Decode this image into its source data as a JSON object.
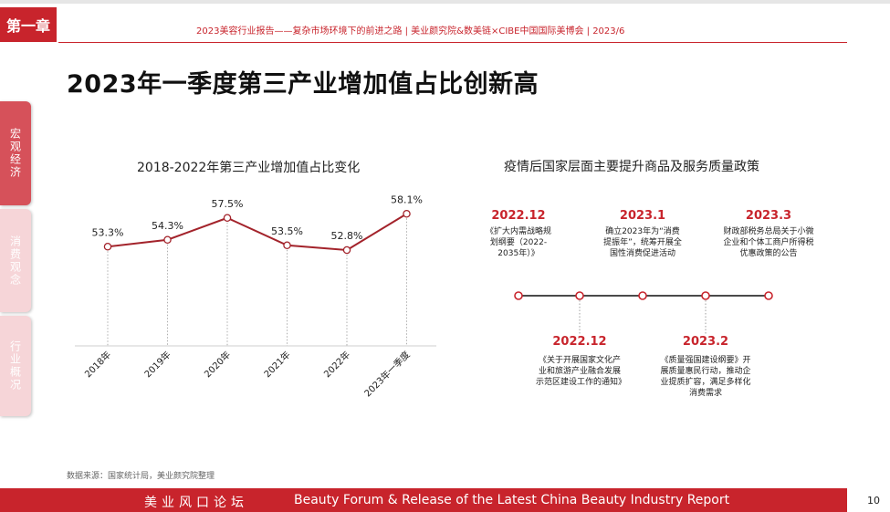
{
  "header": {
    "chapter": "第一章",
    "line": "2023美容行业报告——复杂市场环境下的前进之路  |  美业颜究院&数美链×CIBE中国国际美博会  |  2023/6"
  },
  "title": "2023年一季度第三产业增加值占比创新高",
  "side_tabs": [
    "宏观经济",
    "消费观念",
    "行业概况"
  ],
  "chart_title": "2018-2022年第三产业增加值占比变化",
  "chart_data": {
    "type": "line",
    "categories": [
      "2018年",
      "2019年",
      "2020年",
      "2021年",
      "2022年",
      "2023年一季度"
    ],
    "series": [
      {
        "values": [
          53.3,
          54.3,
          57.5,
          53.5,
          52.8,
          58.1
        ]
      }
    ],
    "data_labels": [
      "53.3%",
      "54.3%",
      "57.5%",
      "53.5%",
      "52.8%",
      "58.1%"
    ],
    "ylim": [
      48,
      60
    ],
    "grid": false,
    "line_color": "#a3232b"
  },
  "policy": {
    "title": "疫情后国家层面主要提升商品及服务质量政策",
    "items": [
      {
        "date": "2022.12",
        "text": "《扩大内需战略规划纲要（2022-2035年）》",
        "position": "above"
      },
      {
        "date": "2022.12",
        "text": "《关于开展国家文化产业和旅游产业融合发展示范区建设工作的通知》",
        "position": "below"
      },
      {
        "date": "2023.1",
        "text": "确立2023年为“消费提振年”，统筹开展全国性消费促进活动",
        "position": "above"
      },
      {
        "date": "2023.2",
        "text": "《质量强国建设纲要》开展质量惠民行动，推动企业提质扩容，满足多样化消费需求",
        "position": "below"
      },
      {
        "date": "2023.3",
        "text": "财政部税务总局关于小微企业和个体工商户所得税优惠政策的公告",
        "position": "above"
      }
    ]
  },
  "source": "数据来源：国家统计局，美业颜究院整理",
  "footer": {
    "cn": "美业风口论坛",
    "en": "Beauty Forum & Release of the Latest China Beauty Industry Report",
    "page": "10"
  },
  "colors": {
    "accent": "#c8242c",
    "line": "#a3232b",
    "tab_active": "#d6515a",
    "tab_inactive": "#f6d5d8"
  }
}
